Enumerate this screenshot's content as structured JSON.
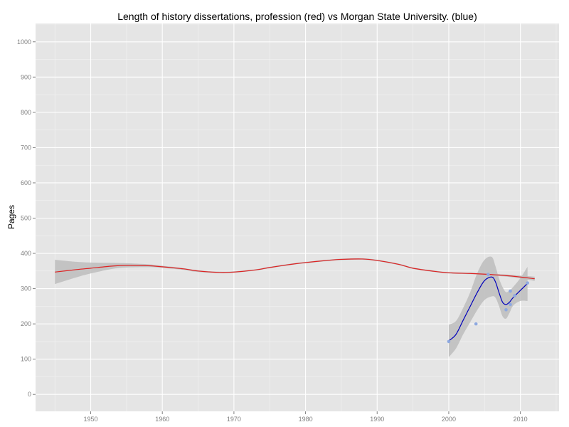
{
  "chart_data": {
    "type": "line",
    "title": "Length of history dissertations, profession (red) vs Morgan State University. (blue)",
    "xlabel": "",
    "ylabel": "Pages",
    "xlim": [
      1942.3,
      2015.4
    ],
    "ylim": [
      -48,
      1052
    ],
    "x_ticks": [
      1950,
      1960,
      1970,
      1980,
      1990,
      2000,
      2010
    ],
    "y_ticks": [
      0,
      100,
      200,
      300,
      400,
      500,
      600,
      700,
      800,
      900,
      1000
    ],
    "grid": true,
    "legend": "none",
    "series": [
      {
        "color": "#dd2222",
        "x": [
          1945,
          1948,
          1950,
          1953,
          1955,
          1958,
          1960,
          1963,
          1965,
          1968,
          1970,
          1973,
          1975,
          1978,
          1980,
          1983,
          1985,
          1988,
          1990,
          1993,
          1995,
          1998,
          2000,
          2003,
          2005,
          2008,
          2010,
          2012
        ],
        "y": [
          347,
          354,
          358,
          364,
          366,
          365,
          362,
          356,
          350,
          346,
          347,
          353,
          360,
          369,
          374,
          380,
          383,
          384,
          380,
          369,
          358,
          349,
          345,
          343,
          341,
          337,
          333,
          328
        ],
        "band_upper": [
          382,
          376,
          374,
          373,
          372,
          369,
          365,
          358,
          352,
          348,
          349,
          355,
          362,
          371,
          376,
          382,
          385,
          386,
          382,
          371,
          360,
          351,
          347,
          345,
          343,
          340,
          337,
          334
        ],
        "band_lower": [
          313,
          332,
          343,
          356,
          360,
          361,
          359,
          353,
          347,
          344,
          345,
          351,
          358,
          367,
          372,
          378,
          381,
          382,
          378,
          367,
          356,
          347,
          343,
          341,
          339,
          334,
          329,
          322
        ]
      },
      {
        "color": "#0000bb",
        "x": [
          2000,
          2001,
          2002,
          2003,
          2004,
          2005,
          2006,
          2006.5,
          2007,
          2007.5,
          2008,
          2008.5,
          2009,
          2010,
          2011
        ],
        "y": [
          152,
          170,
          210,
          250,
          290,
          323,
          333,
          320,
          290,
          262,
          255,
          262,
          275,
          295,
          315
        ],
        "band_upper": [
          198,
          208,
          245,
          290,
          345,
          382,
          390,
          365,
          330,
          305,
          290,
          295,
          305,
          330,
          362
        ],
        "band_lower": [
          106,
          130,
          170,
          205,
          240,
          268,
          278,
          275,
          252,
          222,
          215,
          232,
          252,
          265,
          265
        ]
      }
    ],
    "points": {
      "color": "#8ea9e0",
      "x": [
        2000,
        2003.8,
        2005.5,
        2008,
        2008.6,
        2008.6,
        2009.2,
        2011
      ],
      "y": [
        150,
        200,
        340,
        240,
        255,
        293,
        280,
        316
      ]
    }
  }
}
